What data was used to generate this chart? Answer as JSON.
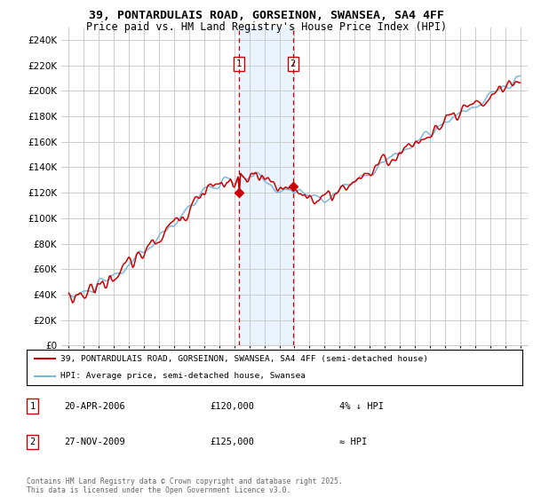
{
  "title_line1": "39, PONTARDULAIS ROAD, GORSEINON, SWANSEA, SA4 4FF",
  "title_line2": "Price paid vs. HM Land Registry's House Price Index (HPI)",
  "yvalues": [
    0,
    20000,
    40000,
    60000,
    80000,
    100000,
    120000,
    140000,
    160000,
    180000,
    200000,
    220000,
    240000
  ],
  "hpi_color": "#7ab8d9",
  "price_color": "#cc0000",
  "marker_color": "#cc0000",
  "grid_color": "#cccccc",
  "background_color": "#ffffff",
  "legend_line1": "39, PONTARDULAIS ROAD, GORSEINON, SWANSEA, SA4 4FF (semi-detached house)",
  "legend_line2": "HPI: Average price, semi-detached house, Swansea",
  "annotation1_date": "20-APR-2006",
  "annotation1_price": "£120,000",
  "annotation1_hpi": "4% ↓ HPI",
  "annotation2_date": "27-NOV-2009",
  "annotation2_price": "£125,000",
  "annotation2_hpi": "≈ HPI",
  "footer": "Contains HM Land Registry data © Crown copyright and database right 2025.\nThis data is licensed under the Open Government Licence v3.0.",
  "sale1_year": 2006.3,
  "sale1_value": 120000,
  "sale2_year": 2009.9,
  "sale2_value": 125000,
  "xlim_start": 1994.5,
  "xlim_end": 2025.5,
  "ylim_min": 0,
  "ylim_max": 250000,
  "span_color": "#ddeeff",
  "span_alpha": 0.6
}
